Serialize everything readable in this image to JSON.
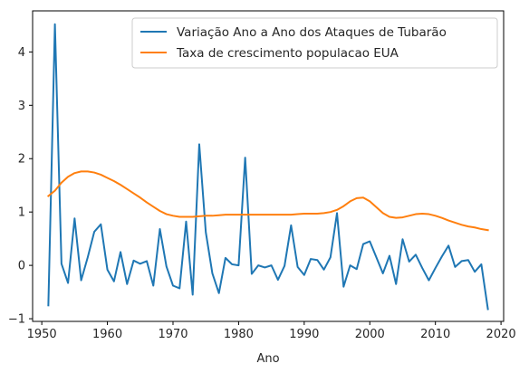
{
  "chart_data": {
    "type": "line",
    "title": "",
    "xlabel": "Ano",
    "ylabel": "",
    "xlim": [
      1948.6,
      2020.4
    ],
    "ylim": [
      -1.05,
      4.77
    ],
    "xticks": [
      1950,
      1960,
      1970,
      1980,
      1990,
      2000,
      2010,
      2020
    ],
    "yticks": [
      -1,
      0,
      1,
      2,
      3,
      4
    ],
    "grid": false,
    "legend_position": "upper right",
    "series": [
      {
        "name": "Variação Ano a Ano dos Ataques de Tubarão",
        "color": "#1f77b4",
        "x": [
          1951,
          1952,
          1953,
          1954,
          1955,
          1956,
          1957,
          1958,
          1959,
          1960,
          1961,
          1962,
          1963,
          1964,
          1965,
          1966,
          1967,
          1968,
          1969,
          1970,
          1971,
          1972,
          1973,
          1974,
          1975,
          1976,
          1977,
          1978,
          1979,
          1980,
          1981,
          1982,
          1983,
          1984,
          1985,
          1986,
          1987,
          1988,
          1989,
          1990,
          1991,
          1992,
          1993,
          1994,
          1995,
          1996,
          1997,
          1998,
          1999,
          2000,
          2001,
          2002,
          2003,
          2004,
          2005,
          2006,
          2007,
          2008,
          2009,
          2010,
          2011,
          2012,
          2013,
          2014,
          2015,
          2016,
          2017,
          2018
        ],
        "y": [
          -0.75,
          4.52,
          0.03,
          -0.33,
          0.88,
          -0.28,
          0.15,
          0.63,
          0.77,
          -0.08,
          -0.3,
          0.25,
          -0.35,
          0.09,
          0.03,
          0.08,
          -0.38,
          0.68,
          -0.02,
          -0.38,
          -0.43,
          0.82,
          -0.55,
          2.27,
          0.62,
          -0.15,
          -0.52,
          0.14,
          0.02,
          0.0,
          2.02,
          -0.16,
          0.0,
          -0.04,
          0.0,
          -0.27,
          -0.01,
          0.75,
          -0.03,
          -0.18,
          0.12,
          0.1,
          -0.08,
          0.15,
          0.98,
          -0.4,
          0.0,
          -0.07,
          0.4,
          0.45,
          0.15,
          -0.15,
          0.18,
          -0.35,
          0.49,
          0.07,
          0.2,
          -0.05,
          -0.28,
          -0.05,
          0.17,
          0.37,
          -0.03,
          0.08,
          0.1,
          -0.12,
          0.02,
          -0.82
        ]
      },
      {
        "name": "Taxa de crescimento populacao EUA",
        "color": "#ff7f0e",
        "x": [
          1951,
          1952,
          1953,
          1954,
          1955,
          1956,
          1957,
          1958,
          1959,
          1960,
          1961,
          1962,
          1963,
          1964,
          1965,
          1966,
          1967,
          1968,
          1969,
          1970,
          1971,
          1972,
          1973,
          1974,
          1975,
          1976,
          1977,
          1978,
          1979,
          1980,
          1981,
          1982,
          1983,
          1984,
          1985,
          1986,
          1987,
          1988,
          1989,
          1990,
          1991,
          1992,
          1993,
          1994,
          1995,
          1996,
          1997,
          1998,
          1999,
          2000,
          2001,
          2002,
          2003,
          2004,
          2005,
          2006,
          2007,
          2008,
          2009,
          2010,
          2011,
          2012,
          2013,
          2014,
          2015,
          2016,
          2017,
          2018
        ],
        "y": [
          1.3,
          1.4,
          1.55,
          1.66,
          1.73,
          1.76,
          1.76,
          1.74,
          1.7,
          1.64,
          1.58,
          1.51,
          1.43,
          1.35,
          1.27,
          1.18,
          1.1,
          1.02,
          0.96,
          0.93,
          0.91,
          0.91,
          0.91,
          0.92,
          0.93,
          0.93,
          0.94,
          0.95,
          0.95,
          0.95,
          0.95,
          0.95,
          0.95,
          0.95,
          0.95,
          0.95,
          0.95,
          0.95,
          0.96,
          0.97,
          0.97,
          0.97,
          0.98,
          1.0,
          1.04,
          1.11,
          1.2,
          1.26,
          1.27,
          1.2,
          1.09,
          0.98,
          0.91,
          0.89,
          0.9,
          0.93,
          0.96,
          0.97,
          0.96,
          0.93,
          0.89,
          0.84,
          0.8,
          0.76,
          0.73,
          0.71,
          0.68,
          0.66
        ]
      }
    ]
  }
}
